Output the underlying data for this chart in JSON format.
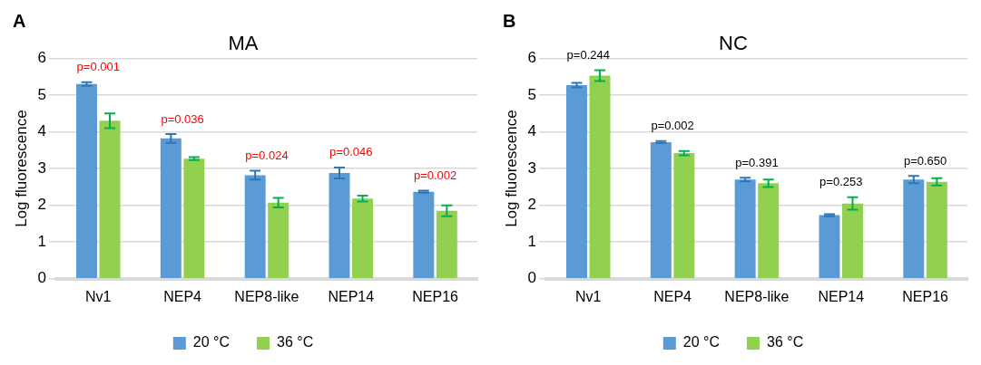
{
  "chart_data": [
    {
      "type": "bar",
      "title": "MA",
      "ylabel": "Log fluorescence",
      "categories": [
        "Nv1",
        "NEP4",
        "NEP8-like",
        "NEP14",
        "NEP16"
      ],
      "series": [
        {
          "name": "20 °C",
          "color": "#5b9bd5",
          "values": [
            5.3,
            3.82,
            2.82,
            2.88,
            2.37
          ],
          "errors": [
            0.05,
            0.12,
            0.12,
            0.15,
            0.03
          ]
        },
        {
          "name": "36 °C",
          "color": "#92d050",
          "values": [
            4.3,
            3.27,
            2.07,
            2.18,
            1.85
          ],
          "errors": [
            0.2,
            0.04,
            0.13,
            0.08,
            0.15
          ]
        }
      ],
      "ylim": [
        0,
        6
      ],
      "yticks": [
        0,
        1,
        2,
        3,
        4,
        5,
        6
      ],
      "grid": "y",
      "legend": "bottom",
      "annotations": [
        "A",
        "p=0.001",
        "p=0.036",
        "p=0.024",
        "p=0.046",
        "p=0.002"
      ]
    },
    {
      "type": "bar",
      "title": "NC",
      "ylabel": "Log fluorescence",
      "categories": [
        "Nv1",
        "NEP4",
        "NEP8-like",
        "NEP14",
        "NEP16"
      ],
      "series": [
        {
          "name": "20 °C",
          "color": "#5b9bd5",
          "values": [
            5.27,
            3.72,
            2.7,
            1.73,
            2.7
          ],
          "errors": [
            0.06,
            0.03,
            0.05,
            0.03,
            0.1
          ]
        },
        {
          "name": "36 °C",
          "color": "#92d050",
          "values": [
            5.53,
            3.42,
            2.6,
            2.05,
            2.64
          ],
          "errors": [
            0.15,
            0.06,
            0.1,
            0.17,
            0.1
          ]
        }
      ],
      "ylim": [
        0,
        6
      ],
      "yticks": [
        0,
        1,
        2,
        3,
        4,
        5,
        6
      ],
      "grid": "y",
      "legend": "bottom",
      "annotations": [
        "B",
        "p=0.244",
        "p=0.002",
        "p=0.391",
        "p=0.253",
        "p=0.650"
      ]
    }
  ]
}
